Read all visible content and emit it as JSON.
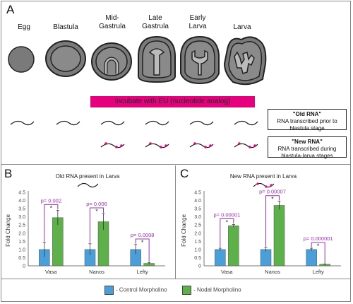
{
  "panels": {
    "a": "A",
    "b": "B",
    "c": "C"
  },
  "stages": [
    {
      "label": "Egg"
    },
    {
      "label": "Blastula"
    },
    {
      "label": "Mid-\nGastrula"
    },
    {
      "label": "Late\nGastrula"
    },
    {
      "label": "Early\nLarva"
    },
    {
      "label": "Larva"
    }
  ],
  "incubate_label": "Incubate with EU (nucleotide analog)",
  "old_rna": {
    "title": "\"Old RNA\"",
    "desc1": "RNA transcribed prior to",
    "desc2": "blastula stage"
  },
  "new_rna": {
    "title": "\"New RNA\"",
    "desc1": "RNA transcribed during",
    "desc2": "blastula-larva stages"
  },
  "colors": {
    "control": "#4a9fd8",
    "nodal": "#5db04a",
    "annotation": "#9b30b8",
    "incubate": "#e6007e"
  },
  "legend": {
    "control": "- Control Morpholino",
    "nodal": "- Nodal Morpholino"
  },
  "chart_data": [
    {
      "type": "bar",
      "title": "Old RNA present in Larva",
      "ylabel": "Fold Change",
      "ylim": [
        0,
        4.5
      ],
      "yticks": [
        "0",
        "0.5",
        "1.0",
        "1.5",
        "2.0",
        "2.5",
        "3.0",
        "3.5",
        "4.0",
        "4.5"
      ],
      "categories": [
        "Vasa",
        "Nanos",
        "Lefty"
      ],
      "series": [
        {
          "name": "Control Morpholino",
          "values": [
            1.0,
            1.0,
            1.0
          ],
          "errors": [
            0.45,
            0.35,
            0.3
          ]
        },
        {
          "name": "Nodal Morpholino",
          "values": [
            2.95,
            2.7,
            0.15
          ],
          "errors": [
            0.45,
            0.5,
            0.05
          ]
        }
      ],
      "pvalues": [
        "p= 0.002",
        "p= 0.006",
        "p= 0.0008"
      ],
      "star": "*"
    },
    {
      "type": "bar",
      "title": "New RNA present in Larva",
      "ylabel": "Fold Change",
      "ylim": [
        0,
        4.5
      ],
      "yticks": [
        "0",
        "0.5",
        "1.0",
        "1.5",
        "2.0",
        "2.5",
        "3.0",
        "3.5",
        "4.0",
        "4.5"
      ],
      "categories": [
        "Vasa",
        "Nanos",
        "Lefty"
      ],
      "series": [
        {
          "name": "Control Morpholino",
          "values": [
            1.0,
            1.0,
            1.0
          ],
          "errors": [
            0.08,
            0.12,
            0.08
          ]
        },
        {
          "name": "Nodal Morpholino",
          "values": [
            2.45,
            3.7,
            0.1
          ],
          "errors": [
            0.08,
            0.25,
            0.02
          ]
        }
      ],
      "pvalues": [
        "p= 0.00001",
        "p= 0.00007",
        "p= 0.000001"
      ],
      "star": "*"
    }
  ]
}
